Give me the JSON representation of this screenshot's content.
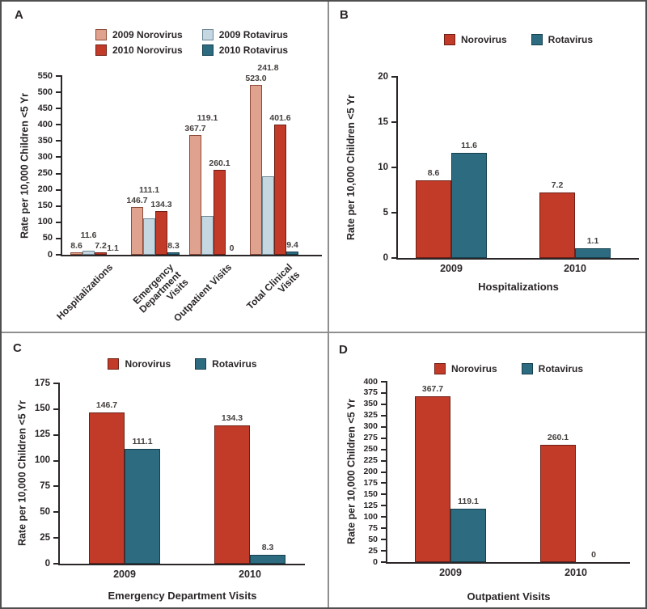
{
  "figure_title": "",
  "colors": {
    "axis": "#2B2627",
    "text": "#2B2627",
    "value_label": "#45403E",
    "panel_divider": "#8F8F8F",
    "outer_border": "#4F4F4F",
    "background": "#FFFFFF",
    "norovirus_2009": "#DFA28F",
    "rotavirus_2009": "#C5D8E2",
    "norovirus_2010": "#C23A28",
    "rotavirus_2010": "#2D6B80"
  },
  "chart_data": [
    {
      "panel": "A",
      "type": "bar",
      "title": "",
      "xlabel": "",
      "ylabel": "Rate per 10,000 Children <5 Yr",
      "ylim": [
        0,
        550
      ],
      "ytick_step": 50,
      "grid": false,
      "legend_position": "top",
      "categories": [
        "Hospitalizations",
        "Emergency\nDepartment\nVisits",
        "Outpatient Visits",
        "Total Clinical\nVisits"
      ],
      "series": [
        {
          "name": "2009 Norovirus",
          "fill": "#DFA28F",
          "stroke": "#8F4A38",
          "values": [
            8.6,
            146.7,
            367.7,
            523.0
          ],
          "labels": [
            "8.6",
            "146.7",
            "367.7",
            "523.0"
          ]
        },
        {
          "name": "2009 Rotavirus",
          "fill": "#C5D8E2",
          "stroke": "#6C8795",
          "values": [
            11.6,
            111.1,
            119.1,
            241.8
          ],
          "labels": [
            "11.6",
            "111.1",
            "119.1",
            "241.8"
          ]
        },
        {
          "name": "2010 Norovirus",
          "fill": "#C23A28",
          "stroke": "#6E1F15",
          "values": [
            7.2,
            134.3,
            260.1,
            401.6
          ],
          "labels": [
            "7.2",
            "134.3",
            "260.1",
            "401.6"
          ]
        },
        {
          "name": "2010 Rotavirus",
          "fill": "#2D6B80",
          "stroke": "#14404F",
          "values": [
            1.1,
            8.3,
            0,
            9.4
          ],
          "labels": [
            "1.1",
            "8.3",
            "0",
            "9.4"
          ]
        }
      ],
      "legend_grid": [
        [
          "2009 Norovirus",
          "2009 Rotavirus"
        ],
        [
          "2010 Norovirus",
          "2010 Rotavirus"
        ]
      ]
    },
    {
      "panel": "B",
      "type": "bar",
      "title": "",
      "xlabel": "Hospitalizations",
      "ylabel": "Rate per 10,000 Children <5 Yr",
      "ylim": [
        0,
        20
      ],
      "ytick_step": 5,
      "grid": false,
      "legend_position": "top",
      "categories": [
        "2009",
        "2010"
      ],
      "series": [
        {
          "name": "Norovirus",
          "fill": "#C23A28",
          "stroke": "#6E1F15",
          "values": [
            8.6,
            7.2
          ],
          "labels": [
            "8.6",
            "7.2"
          ]
        },
        {
          "name": "Rotavirus",
          "fill": "#2D6B80",
          "stroke": "#14404F",
          "values": [
            11.6,
            1.1
          ],
          "labels": [
            "11.6",
            "1.1"
          ]
        }
      ],
      "legend_row": [
        "Norovirus",
        "Rotavirus"
      ]
    },
    {
      "panel": "C",
      "type": "bar",
      "title": "",
      "xlabel": "Emergency Department Visits",
      "ylabel": "Rate per 10,000 Children <5 Yr",
      "ylim": [
        0,
        175
      ],
      "ytick_step": 25,
      "grid": false,
      "legend_position": "top",
      "categories": [
        "2009",
        "2010"
      ],
      "series": [
        {
          "name": "Norovirus",
          "fill": "#C23A28",
          "stroke": "#6E1F15",
          "values": [
            146.7,
            134.3
          ],
          "labels": [
            "146.7",
            "134.3"
          ]
        },
        {
          "name": "Rotavirus",
          "fill": "#2D6B80",
          "stroke": "#14404F",
          "values": [
            111.1,
            8.3
          ],
          "labels": [
            "111.1",
            "8.3"
          ]
        }
      ],
      "legend_row": [
        "Norovirus",
        "Rotavirus"
      ]
    },
    {
      "panel": "D",
      "type": "bar",
      "title": "",
      "xlabel": "Outpatient Visits",
      "ylabel": "Rate per 10,000 Children <5 Yr",
      "ylim": [
        0,
        400
      ],
      "ytick_step": 25,
      "grid": false,
      "legend_position": "top",
      "categories": [
        "2009",
        "2010"
      ],
      "series": [
        {
          "name": "Norovirus",
          "fill": "#C23A28",
          "stroke": "#6E1F15",
          "values": [
            367.7,
            260.1
          ],
          "labels": [
            "367.7",
            "260.1"
          ]
        },
        {
          "name": "Rotavirus",
          "fill": "#2D6B80",
          "stroke": "#14404F",
          "values": [
            119.1,
            0
          ],
          "labels": [
            "119.1",
            "0"
          ]
        }
      ],
      "legend_row": [
        "Norovirus",
        "Rotavirus"
      ]
    }
  ]
}
